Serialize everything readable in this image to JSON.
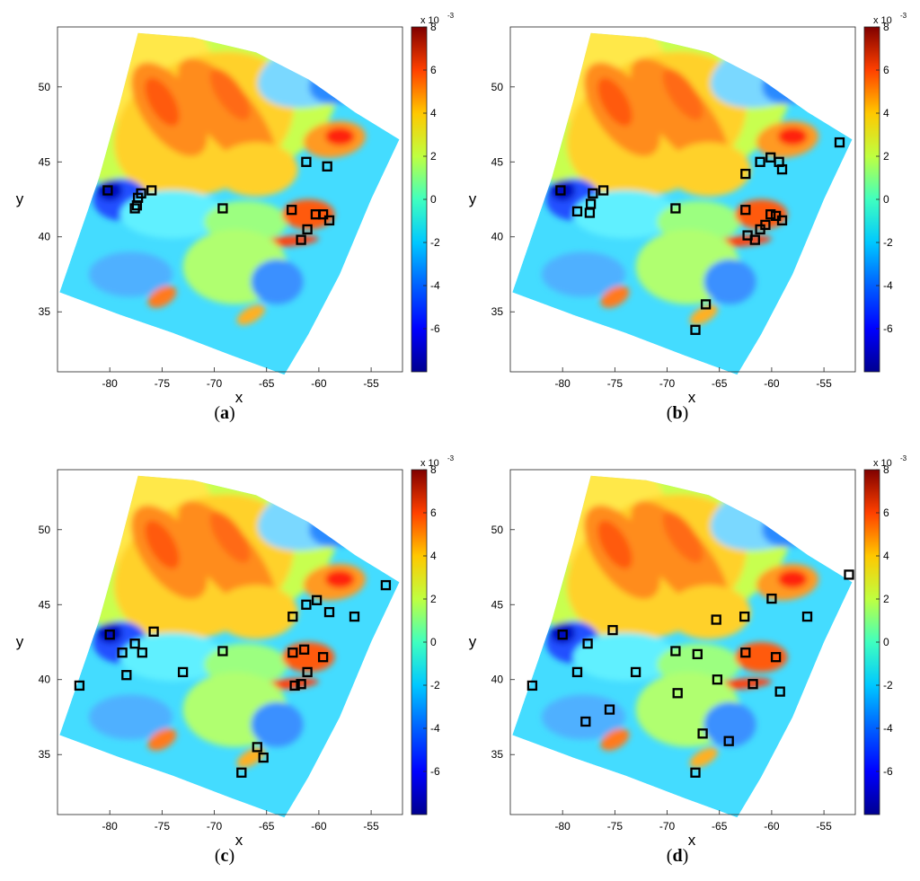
{
  "chart_data": [
    {
      "type": "heatmap",
      "panel_label": "a",
      "xlabel": "x",
      "ylabel": "y",
      "xlim": [
        -85,
        -52
      ],
      "ylim": [
        31,
        54
      ],
      "xticks": [
        "-80",
        "-75",
        "-70",
        "-65",
        "-60",
        "-55"
      ],
      "yticks": [
        "35",
        "40",
        "45",
        "50"
      ],
      "colorbar": {
        "range": [
          -8,
          8
        ],
        "ticks": [
          "8",
          "6",
          "4",
          "2",
          "0",
          "-2",
          "-4",
          "-6"
        ],
        "multiplier": "x 10",
        "exponent": "-3",
        "colormap": "jet"
      },
      "markers": [
        {
          "x": -80.2,
          "y": 43.1
        },
        {
          "x": -77.3,
          "y": 42.6
        },
        {
          "x": -77.0,
          "y": 42.9
        },
        {
          "x": -76.0,
          "y": 43.1
        },
        {
          "x": -77.6,
          "y": 41.9
        },
        {
          "x": -77.4,
          "y": 42.1
        },
        {
          "x": -69.2,
          "y": 41.9
        },
        {
          "x": -62.6,
          "y": 41.8
        },
        {
          "x": -61.2,
          "y": 45.0
        },
        {
          "x": -59.2,
          "y": 44.7
        },
        {
          "x": -60.3,
          "y": 41.5
        },
        {
          "x": -59.6,
          "y": 41.5
        },
        {
          "x": -61.1,
          "y": 40.5
        },
        {
          "x": -61.7,
          "y": 39.8
        },
        {
          "x": -59.0,
          "y": 41.1
        }
      ]
    },
    {
      "type": "heatmap",
      "panel_label": "b",
      "xlabel": "x",
      "ylabel": "y",
      "xlim": [
        -85,
        -52
      ],
      "ylim": [
        31,
        54
      ],
      "xticks": [
        "-80",
        "-75",
        "-70",
        "-65",
        "-60",
        "-55"
      ],
      "yticks": [
        "35",
        "40",
        "45",
        "50"
      ],
      "colorbar": {
        "range": [
          -8,
          8
        ],
        "ticks": [
          "8",
          "6",
          "4",
          "2",
          "0",
          "-2",
          "-4",
          "-6"
        ],
        "multiplier": "x 10",
        "exponent": "-3",
        "colormap": "jet"
      },
      "markers": [
        {
          "x": -80.2,
          "y": 43.1
        },
        {
          "x": -77.1,
          "y": 42.9
        },
        {
          "x": -76.1,
          "y": 43.1
        },
        {
          "x": -78.6,
          "y": 41.7
        },
        {
          "x": -77.4,
          "y": 41.6
        },
        {
          "x": -77.3,
          "y": 42.2
        },
        {
          "x": -69.2,
          "y": 41.9
        },
        {
          "x": -62.5,
          "y": 41.8
        },
        {
          "x": -62.5,
          "y": 44.2
        },
        {
          "x": -61.1,
          "y": 45.0
        },
        {
          "x": -60.1,
          "y": 45.3
        },
        {
          "x": -59.3,
          "y": 45.0
        },
        {
          "x": -59.0,
          "y": 44.5
        },
        {
          "x": -53.5,
          "y": 46.3
        },
        {
          "x": -60.1,
          "y": 41.5
        },
        {
          "x": -59.6,
          "y": 41.4
        },
        {
          "x": -60.6,
          "y": 40.8
        },
        {
          "x": -61.1,
          "y": 40.5
        },
        {
          "x": -62.3,
          "y": 40.1
        },
        {
          "x": -61.6,
          "y": 39.8
        },
        {
          "x": -59.0,
          "y": 41.1
        },
        {
          "x": -66.3,
          "y": 35.5
        },
        {
          "x": -67.3,
          "y": 33.8
        }
      ]
    },
    {
      "type": "heatmap",
      "panel_label": "c",
      "xlabel": "x",
      "ylabel": "y",
      "xlim": [
        -85,
        -52
      ],
      "ylim": [
        31,
        54
      ],
      "xticks": [
        "-80",
        "-75",
        "-70",
        "-65",
        "-60",
        "-55"
      ],
      "yticks": [
        "35",
        "40",
        "45",
        "50"
      ],
      "colorbar": {
        "range": [
          -8,
          8
        ],
        "ticks": [
          "8",
          "6",
          "4",
          "2",
          "0",
          "-2",
          "-4",
          "-6"
        ],
        "multiplier": "x 10",
        "exponent": "-3",
        "colormap": "jet"
      },
      "markers": [
        {
          "x": -80.0,
          "y": 43.0
        },
        {
          "x": -77.6,
          "y": 42.4
        },
        {
          "x": -75.8,
          "y": 43.2
        },
        {
          "x": -78.8,
          "y": 41.8
        },
        {
          "x": -76.9,
          "y": 41.8
        },
        {
          "x": -78.4,
          "y": 40.3
        },
        {
          "x": -82.9,
          "y": 39.6
        },
        {
          "x": -73.0,
          "y": 40.5
        },
        {
          "x": -69.2,
          "y": 41.9
        },
        {
          "x": -62.5,
          "y": 41.8
        },
        {
          "x": -61.4,
          "y": 42.0
        },
        {
          "x": -62.5,
          "y": 44.2
        },
        {
          "x": -61.2,
          "y": 45.0
        },
        {
          "x": -60.2,
          "y": 45.3
        },
        {
          "x": -59.0,
          "y": 44.5
        },
        {
          "x": -56.6,
          "y": 44.2
        },
        {
          "x": -53.6,
          "y": 46.3
        },
        {
          "x": -59.6,
          "y": 41.5
        },
        {
          "x": -61.1,
          "y": 40.5
        },
        {
          "x": -62.3,
          "y": 39.6
        },
        {
          "x": -61.7,
          "y": 39.7
        },
        {
          "x": -65.9,
          "y": 35.5
        },
        {
          "x": -65.3,
          "y": 34.8
        },
        {
          "x": -67.4,
          "y": 33.8
        }
      ]
    },
    {
      "type": "heatmap",
      "panel_label": "d",
      "xlabel": "x",
      "ylabel": "y",
      "xlim": [
        -85,
        -52
      ],
      "ylim": [
        31,
        54
      ],
      "xticks": [
        "-80",
        "-75",
        "-70",
        "-65",
        "-60",
        "-55"
      ],
      "yticks": [
        "35",
        "40",
        "45",
        "50"
      ],
      "colorbar": {
        "range": [
          -8,
          8
        ],
        "ticks": [
          "8",
          "6",
          "4",
          "2",
          "0",
          "-2",
          "-4",
          "-6"
        ],
        "multiplier": "x 10",
        "exponent": "-3",
        "colormap": "jet"
      },
      "markers": [
        {
          "x": -80.0,
          "y": 43.0
        },
        {
          "x": -77.6,
          "y": 42.4
        },
        {
          "x": -75.2,
          "y": 43.3
        },
        {
          "x": -78.6,
          "y": 40.5
        },
        {
          "x": -82.9,
          "y": 39.6
        },
        {
          "x": -73.0,
          "y": 40.5
        },
        {
          "x": -77.8,
          "y": 37.2
        },
        {
          "x": -75.5,
          "y": 38.0
        },
        {
          "x": -69.2,
          "y": 41.9
        },
        {
          "x": -67.1,
          "y": 41.7
        },
        {
          "x": -69.0,
          "y": 39.1
        },
        {
          "x": -65.2,
          "y": 40.0
        },
        {
          "x": -62.5,
          "y": 41.8
        },
        {
          "x": -65.3,
          "y": 44.0
        },
        {
          "x": -62.6,
          "y": 44.2
        },
        {
          "x": -60.0,
          "y": 45.4
        },
        {
          "x": -56.6,
          "y": 44.2
        },
        {
          "x": -52.6,
          "y": 47.0
        },
        {
          "x": -59.6,
          "y": 41.5
        },
        {
          "x": -61.8,
          "y": 39.7
        },
        {
          "x": -59.2,
          "y": 39.2
        },
        {
          "x": -66.6,
          "y": 36.4
        },
        {
          "x": -64.1,
          "y": 35.9
        },
        {
          "x": -67.3,
          "y": 33.8
        }
      ]
    }
  ]
}
